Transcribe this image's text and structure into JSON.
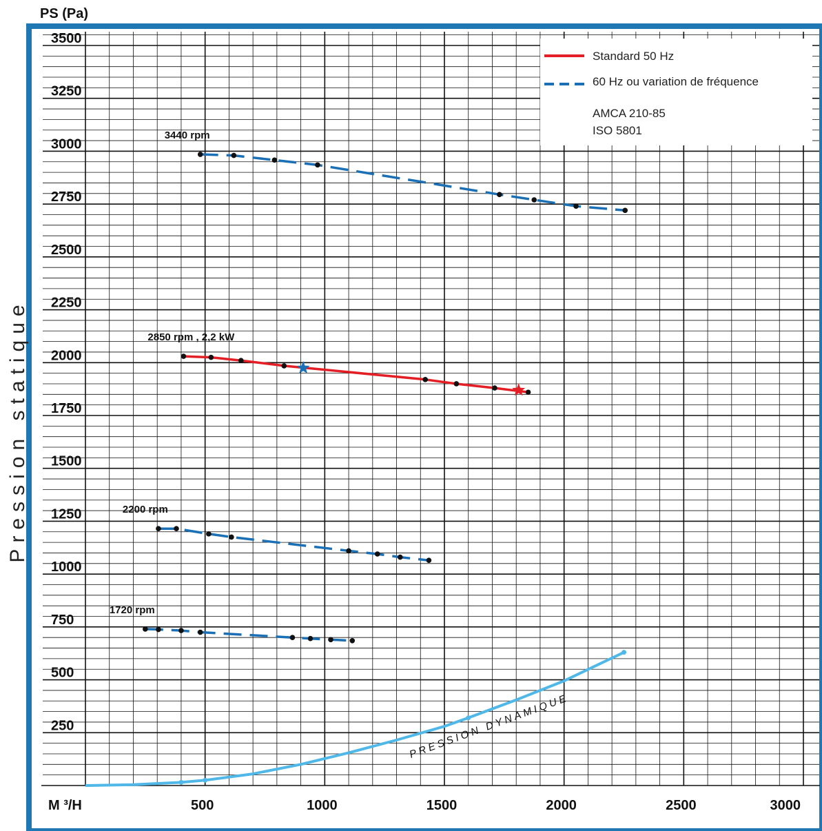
{
  "chart_data": {
    "type": "line",
    "y_top_label": "PS (Pa)",
    "y_title": "Pression statique",
    "x_unit_label": "M ³/H",
    "xlim": [
      0,
      3000
    ],
    "ylim": [
      0,
      3500
    ],
    "x_ticks": [
      500,
      1000,
      1500,
      2000,
      2500,
      3000
    ],
    "y_ticks": [
      250,
      500,
      750,
      1000,
      1250,
      1500,
      1750,
      2000,
      2250,
      2500,
      2750,
      3000,
      3250,
      3500
    ],
    "x_tick_labels": [
      "500",
      "1000",
      "1500",
      "2000",
      "2500",
      "3000"
    ],
    "y_tick_labels": [
      "250",
      "500",
      "750",
      "1000",
      "1250",
      "1500",
      "1750",
      "2000",
      "2250",
      "2500",
      "2750",
      "3000",
      "3250",
      "3500"
    ],
    "grid": true,
    "legend": {
      "position": "top-right",
      "entries": [
        {
          "label": "Standard 50 Hz",
          "style": "solid",
          "color": "#e31e24"
        },
        {
          "label": "60 Hz ou variation de fréquence",
          "style": "dashed",
          "color": "#1a6fb5"
        }
      ],
      "standards": [
        "AMCA 210-85",
        "ISO 5801"
      ]
    },
    "series": [
      {
        "name": "3440 rpm",
        "label": "3440 rpm",
        "style": "dashed",
        "color": "#1a6fb5",
        "x": [
          480,
          620,
          790,
          970,
          1730,
          1875,
          2050,
          2255
        ],
        "y": [
          2985,
          2980,
          2958,
          2935,
          2795,
          2770,
          2740,
          2720
        ]
      },
      {
        "name": "2850 rpm",
        "label": "2850 rpm  , 2,2 kW",
        "style": "solid",
        "color": "#e31e24",
        "x": [
          410,
          525,
          650,
          830,
          1420,
          1550,
          1710,
          1850
        ],
        "y": [
          2030,
          2025,
          2010,
          1985,
          1920,
          1900,
          1880,
          1860
        ]
      },
      {
        "name": "2200 rpm",
        "label": "2200 rpm",
        "style": "dashed",
        "color": "#1a6fb5",
        "x": [
          305,
          380,
          515,
          610,
          1100,
          1220,
          1315,
          1435
        ],
        "y": [
          1215,
          1215,
          1190,
          1175,
          1110,
          1095,
          1080,
          1065
        ]
      },
      {
        "name": "1720 rpm",
        "label": "1720 rpm",
        "style": "dashed",
        "color": "#1a6fb5",
        "x": [
          250,
          305,
          400,
          480,
          865,
          940,
          1025,
          1115
        ],
        "y": [
          740,
          738,
          733,
          725,
          700,
          695,
          690,
          685
        ]
      },
      {
        "name": "PRESSION DYNAMIQUE",
        "label": "PRESSION DYNAMIQUE",
        "style": "solid",
        "color": "#4fb8e8",
        "x": [
          0,
          200,
          400,
          500,
          700,
          900,
          1100,
          1300,
          1500,
          1600,
          1800,
          2000,
          2250
        ],
        "y": [
          0,
          4,
          15,
          25,
          55,
          100,
          155,
          215,
          280,
          320,
          405,
          495,
          630
        ]
      }
    ],
    "markers": [
      {
        "type": "star",
        "color": "#1a6fb5",
        "x": 910,
        "y": 1975
      },
      {
        "type": "star",
        "color": "#e31e24",
        "x": 1810,
        "y": 1870
      }
    ]
  }
}
